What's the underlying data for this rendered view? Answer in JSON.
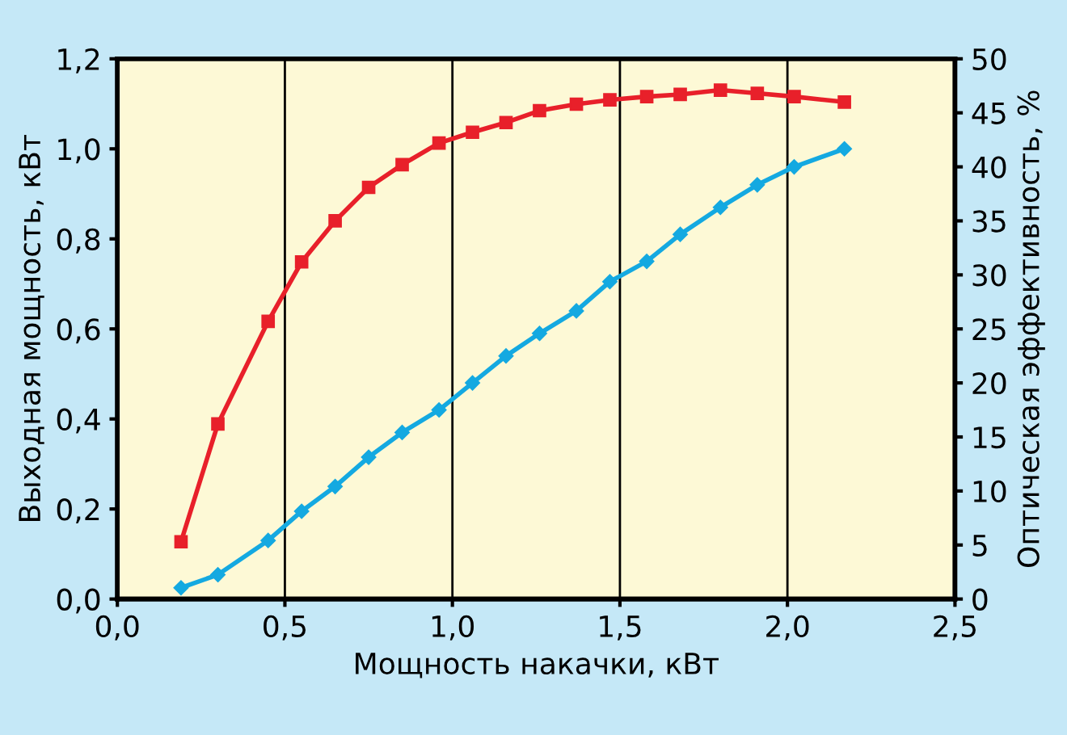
{
  "chart_data": {
    "type": "line",
    "xlabel": "Мощность накачки, кВт",
    "ylabel": "Выходная мощность, кВт",
    "y2label": "Оптическая эффективность, %",
    "x": [
      0.19,
      0.3,
      0.45,
      0.55,
      0.65,
      0.75,
      0.85,
      0.96,
      1.06,
      1.16,
      1.26,
      1.37,
      1.47,
      1.58,
      1.68,
      1.8,
      1.91,
      2.02,
      2.17
    ],
    "series": [
      {
        "color": "#14a9e1",
        "marker": "diamond",
        "values": [
          0.025,
          0.054,
          0.13,
          0.195,
          0.25,
          0.315,
          0.37,
          0.42,
          0.48,
          0.54,
          0.59,
          0.64,
          0.705,
          0.75,
          0.81,
          0.87,
          0.92,
          0.96,
          1.0
        ]
      },
      {
        "color": "#e8202a",
        "marker": "square",
        "axis": "y2",
        "values": [
          5.3,
          16.2,
          25.7,
          31.2,
          35.0,
          38.1,
          40.2,
          42.2,
          43.2,
          44.1,
          45.2,
          45.8,
          46.2,
          46.5,
          46.7,
          47.1,
          46.8,
          46.5,
          46.0
        ]
      }
    ],
    "xlim": [
      0,
      2.5
    ],
    "xticks": [
      {
        "value": 0,
        "label": "0,0"
      },
      {
        "value": 0.5,
        "label": "0,5"
      },
      {
        "value": 1.0,
        "label": "1,0"
      },
      {
        "value": 1.5,
        "label": "1,5"
      },
      {
        "value": 2.0,
        "label": "2,0"
      },
      {
        "value": 2.5,
        "label": "2,5"
      }
    ],
    "ylim": [
      0,
      1.2
    ],
    "yticks": [
      {
        "value": 0,
        "label": "0,0"
      },
      {
        "value": 0.2,
        "label": "0,2"
      },
      {
        "value": 0.4,
        "label": "0,4"
      },
      {
        "value": 0.6,
        "label": "0,6"
      },
      {
        "value": 0.8,
        "label": "0,8"
      },
      {
        "value": 1.0,
        "label": "1,0"
      },
      {
        "value": 1.2,
        "label": "1,2"
      }
    ],
    "y2lim": [
      0,
      50
    ],
    "y2ticks": [
      0,
      5,
      10,
      15,
      20,
      25,
      30,
      35,
      40,
      45,
      50
    ],
    "grid": "x",
    "legend": false,
    "line_style": "solid"
  }
}
